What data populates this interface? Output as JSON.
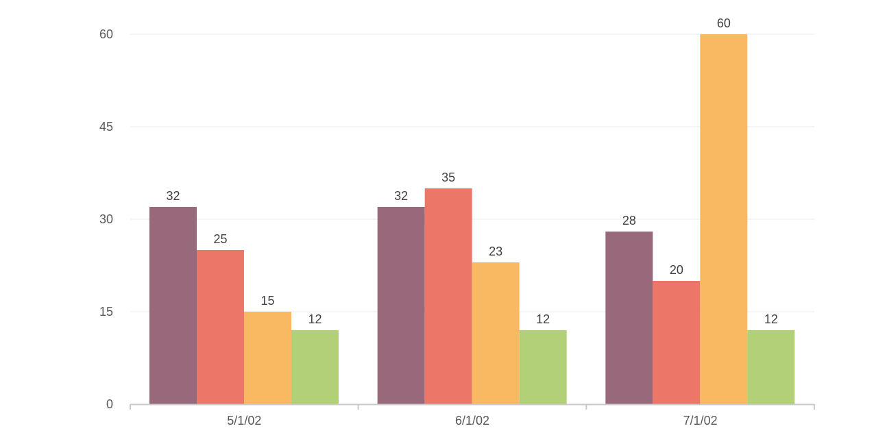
{
  "colors": {
    "grid": "#e8e8e8",
    "axis": "#c9c9c9",
    "tick_text": "#595959",
    "label_text": "#404040"
  },
  "chart_data": {
    "type": "bar",
    "title": "",
    "xlabel": "",
    "ylabel": "",
    "categories": [
      "5/1/02",
      "6/1/02",
      "7/1/02"
    ],
    "ylim": [
      0,
      60
    ],
    "yticks": [
      0,
      15,
      30,
      45,
      60
    ],
    "grid": true,
    "data_labels": true,
    "legend": "none",
    "series": [
      {
        "values": [
          32,
          32,
          28
        ],
        "color": "#98697a"
      },
      {
        "values": [
          25,
          35,
          20
        ],
        "color": "#ec7668"
      },
      {
        "values": [
          15,
          23,
          60
        ],
        "color": "#f9b963"
      },
      {
        "values": [
          12,
          12,
          12
        ],
        "color": "#b2d077"
      }
    ]
  }
}
